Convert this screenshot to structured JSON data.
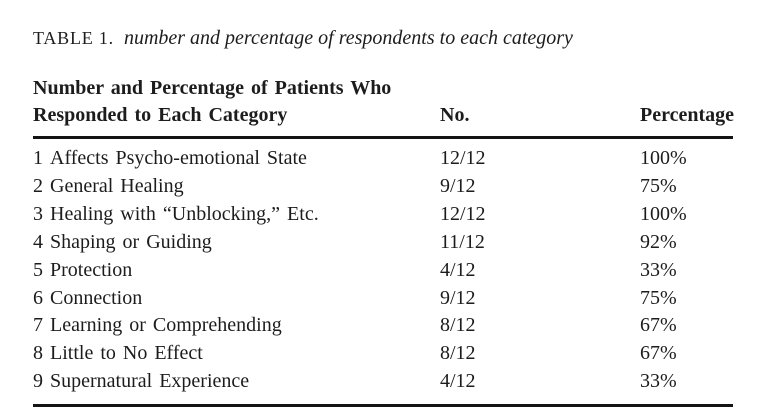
{
  "caption": {
    "label": "TABLE 1.",
    "title": "number and percentage of respondents to each category"
  },
  "table": {
    "header": {
      "category_line1": "Number and Percentage of Patients Who",
      "category_line2": "Responded to Each Category",
      "no": "No.",
      "percentage": "Percentage"
    },
    "rows": [
      {
        "num": "1",
        "category": "Affects Psycho-emotional State",
        "no": "12/12",
        "percentage": "100%"
      },
      {
        "num": "2",
        "category": "General Healing",
        "no": "9/12",
        "percentage": "75%"
      },
      {
        "num": "3",
        "category": "Healing with “Unblocking,” Etc.",
        "no": "12/12",
        "percentage": "100%"
      },
      {
        "num": "4",
        "category": "Shaping or Guiding",
        "no": "11/12",
        "percentage": "92%"
      },
      {
        "num": "5",
        "category": "Protection",
        "no": "4/12",
        "percentage": "33%"
      },
      {
        "num": "6",
        "category": "Connection",
        "no": "9/12",
        "percentage": "75%"
      },
      {
        "num": "7",
        "category": "Learning or Comprehending",
        "no": "8/12",
        "percentage": "67%"
      },
      {
        "num": "8",
        "category": "Little to No Effect",
        "no": "8/12",
        "percentage": "67%"
      },
      {
        "num": "9",
        "category": "Supernatural Experience",
        "no": "4/12",
        "percentage": "33%"
      }
    ]
  },
  "colors": {
    "background": "#ffffff",
    "text": "#1c1c1c",
    "rule": "#141414"
  }
}
